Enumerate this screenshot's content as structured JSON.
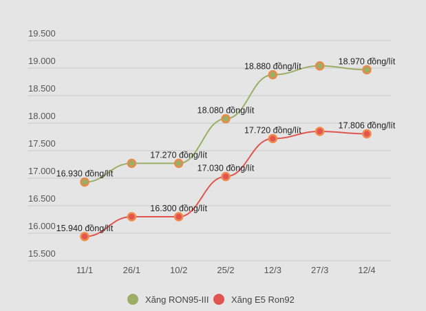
{
  "chart_data": {
    "type": "line",
    "title": "",
    "xlabel": "",
    "ylabel": "",
    "categories": [
      "11/1",
      "26/1",
      "10/2",
      "25/2",
      "12/3",
      "27/3",
      "12/4"
    ],
    "ylim": [
      15500,
      19500
    ],
    "yticks": [
      "15.500",
      "16.000",
      "16.500",
      "17.000",
      "17.500",
      "18.000",
      "18.500",
      "19.000",
      "19.500"
    ],
    "ytick_values": [
      15500,
      16000,
      16500,
      17000,
      17500,
      18000,
      18500,
      19000,
      19500
    ],
    "grid": true,
    "legend_position": "bottom",
    "series": [
      {
        "name": "Xăng RON95-III",
        "color": "#9cad66",
        "marker_stroke": "#ea8a48",
        "values": [
          16930,
          17270,
          17270,
          18080,
          18880,
          19040,
          18970
        ],
        "labels": [
          "16.930 đồng/lít",
          null,
          "17.270 đồng/lít",
          "18.080 đồng/lít",
          "18.880 đồng/lít",
          null,
          "18.970 đồng/lít"
        ]
      },
      {
        "name": "Xăng E5 Ron92",
        "color": "#e05550",
        "marker_stroke": "#f28a4a",
        "values": [
          15940,
          16300,
          16300,
          17030,
          17720,
          17850,
          17806
        ],
        "labels": [
          "15.940 đồng/lít",
          null,
          "16.300 đồng/lít",
          "17.030 đồng/lít",
          "17.720 đồng/lít",
          null,
          "17.806 đồng/lít"
        ]
      }
    ]
  }
}
